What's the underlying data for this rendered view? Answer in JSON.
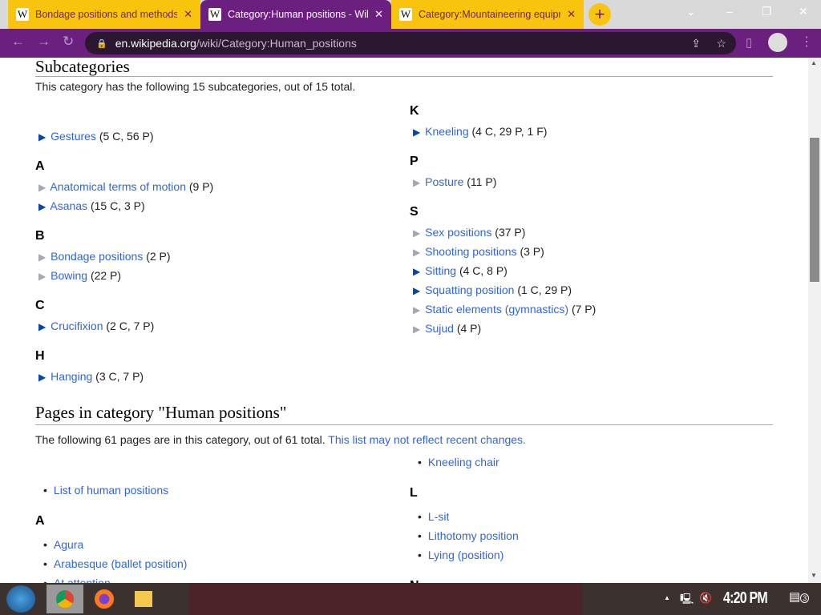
{
  "browser": {
    "tabs": [
      {
        "title": "Bondage positions and methods",
        "active": false
      },
      {
        "title": "Category:Human positions - Wikipedia",
        "active": true
      },
      {
        "title": "Category:Mountaineering equipment",
        "active": false
      }
    ],
    "url_host": "en.wikipedia.org",
    "url_path": "/wiki/Category:Human_positions",
    "colors": {
      "tab": "#f8c40e",
      "toolbar": "#6b2080"
    }
  },
  "subcats": {
    "heading": "Subcategories",
    "intro": "This category has the following 15 subcategories, out of 15 total.",
    "col1": [
      {
        "letter": ""
      },
      {
        "name": "Gestures",
        "count": "(5 C, 56 P)",
        "full": true
      },
      {
        "letter": "A"
      },
      {
        "name": "Anatomical terms of motion",
        "count": "(9 P)",
        "full": false
      },
      {
        "name": "Asanas",
        "count": "(15 C, 3 P)",
        "full": true
      },
      {
        "letter": "B"
      },
      {
        "name": "Bondage positions",
        "count": "(2 P)",
        "full": false
      },
      {
        "name": "Bowing",
        "count": "(22 P)",
        "full": false
      },
      {
        "letter": "C"
      },
      {
        "name": "Crucifixion",
        "count": "(2 C, 7 P)",
        "full": true
      },
      {
        "letter": "H"
      },
      {
        "name": "Hanging",
        "count": "(3 C, 7 P)",
        "full": true
      }
    ],
    "col2": [
      {
        "letter": "K"
      },
      {
        "name": "Kneeling",
        "count": "(4 C, 29 P, 1 F)",
        "full": true
      },
      {
        "letter": "P"
      },
      {
        "name": "Posture",
        "count": "(11 P)",
        "full": false
      },
      {
        "letter": "S"
      },
      {
        "name": "Sex positions",
        "count": "(37 P)",
        "full": false
      },
      {
        "name": "Shooting positions",
        "count": "(3 P)",
        "full": false
      },
      {
        "name": "Sitting",
        "count": "(4 C, 8 P)",
        "full": true
      },
      {
        "name": "Squatting position",
        "count": "(1 C, 29 P)",
        "full": true
      },
      {
        "name": "Static elements (gymnastics)",
        "count": "(7 P)",
        "full": false
      },
      {
        "name": "Sujud",
        "count": "(4 P)",
        "full": false
      }
    ]
  },
  "pages": {
    "heading": "Pages in category \"Human positions\"",
    "intro": "The following 61 pages are in this category, out of 61 total.",
    "intro_link": "This list may not reflect recent changes.",
    "col1": [
      {
        "name": "List of human positions"
      },
      {
        "letter": "A"
      },
      {
        "name": "Agura"
      },
      {
        "name": "Arabesque (ballet position)"
      },
      {
        "name": "At attention"
      }
    ],
    "col2": [
      {
        "name": "Kneeling chair"
      },
      {
        "letter": "L"
      },
      {
        "name": "L-sit"
      },
      {
        "name": "Lithotomy position"
      },
      {
        "name": "Lying (position)"
      },
      {
        "letter": "N"
      }
    ]
  },
  "taskbar": {
    "clock": "4:20 PM",
    "notifications": "3"
  }
}
